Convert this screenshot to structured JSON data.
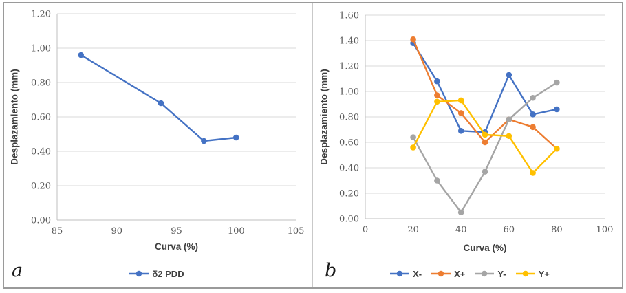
{
  "figure": {
    "panels": [
      {
        "label": "a"
      },
      {
        "label": "b"
      }
    ]
  },
  "chart_data": [
    {
      "type": "line",
      "panel": "a",
      "xlabel": "Curva (%)",
      "ylabel": "Desplazamiento (mm)",
      "xlim": [
        85,
        105
      ],
      "xticks": [
        85,
        90,
        95,
        100,
        105
      ],
      "ylim": [
        0,
        1.2
      ],
      "yticks": [
        0.0,
        0.2,
        0.4,
        0.6,
        0.8,
        1.0,
        1.2
      ],
      "grid": "horizontal",
      "legend_position": "bottom",
      "series": [
        {
          "name": "δ2 PDD",
          "color": "#4472C4",
          "x": [
            87,
            93.7,
            97.3,
            100
          ],
          "y": [
            0.96,
            0.68,
            0.46,
            0.48
          ]
        }
      ]
    },
    {
      "type": "line",
      "panel": "b",
      "xlabel": "Curva (%)",
      "ylabel": "Desplazamiento (mm)",
      "xlim": [
        0,
        100
      ],
      "xticks": [
        0,
        20,
        40,
        60,
        80,
        100
      ],
      "ylim": [
        0,
        1.6
      ],
      "yticks": [
        0.0,
        0.2,
        0.4,
        0.6,
        0.8,
        1.0,
        1.2,
        1.4,
        1.6
      ],
      "grid": "horizontal",
      "legend_position": "bottom",
      "x_shared": [
        20,
        30,
        40,
        50,
        60,
        70,
        80
      ],
      "series": [
        {
          "name": "X-",
          "color": "#4472C4",
          "x": [
            20,
            30,
            40,
            50,
            60,
            70,
            80
          ],
          "y": [
            1.38,
            1.08,
            0.69,
            0.68,
            1.13,
            0.82,
            0.86
          ]
        },
        {
          "name": "X+",
          "color": "#ED7D31",
          "x": [
            20,
            30,
            40,
            50,
            60,
            70,
            80
          ],
          "y": [
            1.41,
            0.97,
            0.83,
            0.6,
            0.78,
            0.72,
            0.55
          ]
        },
        {
          "name": "Y-",
          "color": "#A5A5A5",
          "x": [
            20,
            30,
            40,
            50,
            60,
            70,
            80
          ],
          "y": [
            0.64,
            0.3,
            0.05,
            0.37,
            0.78,
            0.95,
            1.07
          ]
        },
        {
          "name": "Y+",
          "color": "#FFC000",
          "x": [
            20,
            30,
            40,
            50,
            60,
            70,
            80
          ],
          "y": [
            0.56,
            0.92,
            0.93,
            0.66,
            0.65,
            0.36,
            0.55
          ]
        }
      ]
    }
  ],
  "style_colors": {
    "gridline": "#D9D9D9",
    "axis_line": "#BFBFBF",
    "tick_text": "#595959"
  }
}
